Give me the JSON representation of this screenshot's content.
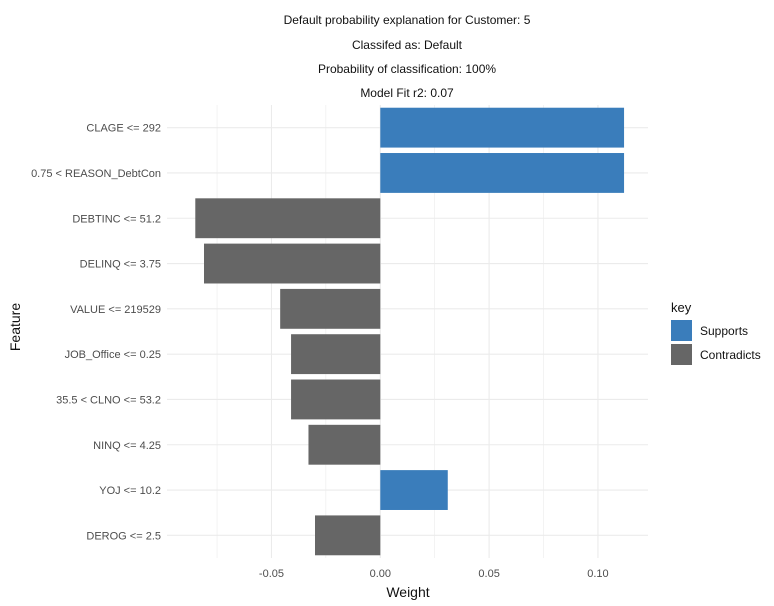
{
  "titles": {
    "line1": "Default probability explanation for Customer: 5",
    "line2": "Classifed as: Default",
    "line3": "Probability of classification: 100%",
    "line4": "Model Fit r2: 0.07"
  },
  "chart_data": {
    "type": "bar",
    "orientation": "horizontal",
    "xlabel": "Weight",
    "ylabel": "Feature",
    "xlim": [
      -0.098,
      0.123
    ],
    "x_ticks": [
      -0.05,
      0.0,
      0.05,
      0.1
    ],
    "x_tick_labels": [
      "-0.05",
      "0.00",
      "0.05",
      "0.10"
    ],
    "grid": true,
    "categories": [
      "CLAGE <= 292",
      "0.75 < REASON_DebtCon",
      "DEBTINC <= 51.2",
      "DELINQ <= 3.75",
      "VALUE <= 219529",
      "JOB_Office <= 0.25",
      "35.5 < CLNO <= 53.2",
      "NINQ <= 4.25",
      "YOJ <= 10.2",
      "DEROG <= 2.5"
    ],
    "values": [
      0.112,
      0.112,
      -0.085,
      -0.081,
      -0.046,
      -0.041,
      -0.041,
      -0.033,
      0.031,
      -0.03
    ],
    "keys": [
      "Supports",
      "Supports",
      "Contradicts",
      "Contradicts",
      "Contradicts",
      "Contradicts",
      "Contradicts",
      "Contradicts",
      "Supports",
      "Contradicts"
    ],
    "legend": {
      "title": "key",
      "position": "right",
      "entries": [
        {
          "label": "Supports",
          "color": "#3a7dbb"
        },
        {
          "label": "Contradicts",
          "color": "#666666"
        }
      ]
    },
    "colors": {
      "Supports": "#3a7dbb",
      "Contradicts": "#666666",
      "grid": "#ebebeb"
    }
  }
}
